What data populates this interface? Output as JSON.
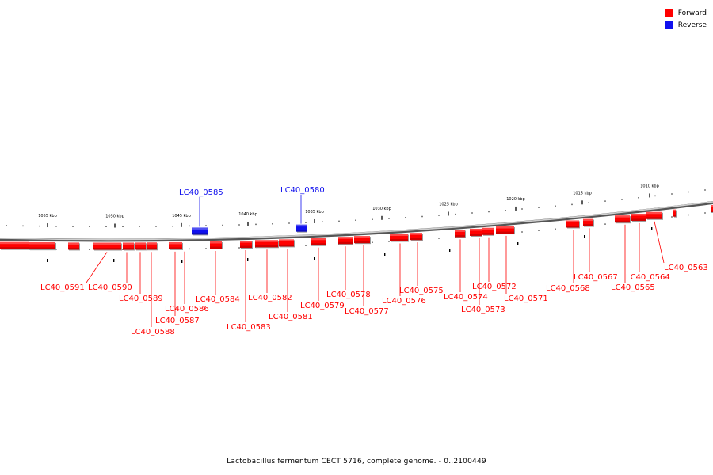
{
  "legend": {
    "forward_label": "Forward",
    "reverse_label": "Reverse",
    "forward_color": "#ff0000",
    "reverse_color": "#1010ee"
  },
  "caption": "Lactobacillus fermentum CECT 5716, complete genome. - 0..2100449",
  "scale_ticks": [
    "1055 kbp",
    "1050 kbp",
    "1045 kbp",
    "1040 kbp",
    "1035 kbp",
    "1030 kbp",
    "1025 kbp",
    "1020 kbp",
    "1015 kbp",
    "1010 kbp"
  ],
  "forward_genes": [
    "LC40_0591",
    "LC40_0590",
    "LC40_0589",
    "LC40_0588",
    "LC40_0587",
    "LC40_0586",
    "LC40_0584",
    "LC40_0583",
    "LC40_0582",
    "LC40_0581",
    "LC40_0579",
    "LC40_0578",
    "LC40_0577",
    "LC40_0576",
    "LC40_0575",
    "LC40_0574",
    "LC40_0573",
    "LC40_0572",
    "LC40_0571",
    "LC40_0568",
    "LC40_0567",
    "LC40_0565",
    "LC40_0564",
    "LC40_0563"
  ],
  "reverse_genes": [
    "LC40_0585",
    "LC40_0580"
  ]
}
